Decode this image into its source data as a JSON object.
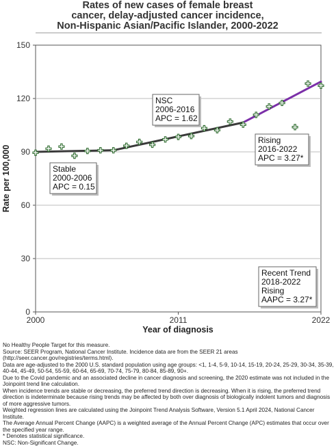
{
  "chart_data": {
    "type": "line",
    "title_lines": [
      "Rates of new cases of female breast",
      "cancer, delay-adjusted cancer incidence,",
      "Non-Hispanic Asian/Pacific Islander,  2000-2022"
    ],
    "xlabel": "Year of diagnosis",
    "ylabel": "Rate per 100,000",
    "xlim": [
      2000,
      2022
    ],
    "ylim": [
      0,
      150
    ],
    "x_ticks": [
      "2000",
      "2011",
      "2022"
    ],
    "y_ticks": [
      "0",
      "30",
      "60",
      "90",
      "120",
      "150"
    ],
    "grid": true,
    "observed": {
      "x": [
        2000,
        2001,
        2002,
        2003,
        2004,
        2005,
        2006,
        2007,
        2008,
        2009,
        2010,
        2011,
        2012,
        2013,
        2014,
        2015,
        2016,
        2017,
        2018,
        2019,
        2020,
        2021,
        2022
      ],
      "y": [
        89.5,
        91.8,
        93.0,
        87.8,
        90.5,
        90.9,
        90.9,
        93.4,
        95.6,
        94.0,
        97.0,
        98.4,
        98.9,
        103.3,
        102.2,
        107.0,
        105.3,
        110.8,
        115.5,
        117.5,
        103.9,
        128.4,
        127.2
      ],
      "color": "#2e6b2e"
    },
    "segments": [
      {
        "x": [
          2000,
          2006
        ],
        "y": [
          90.0,
          90.9
        ],
        "color": "#3a3a3a"
      },
      {
        "x": [
          2006,
          2016
        ],
        "y": [
          90.9,
          106.5
        ],
        "color": "#3a3a3a"
      },
      {
        "x": [
          2016,
          2022
        ],
        "y": [
          106.5,
          129.5
        ],
        "color": "#7b2fa8"
      }
    ],
    "annotations": [
      {
        "lines": [
          "Stable",
          "2000-2006",
          "APC =  0.15"
        ]
      },
      {
        "lines": [
          "NSC",
          "2006-2016",
          "APC =  1.62"
        ]
      },
      {
        "lines": [
          "Rising",
          "2016-2022",
          "APC =  3.27*"
        ]
      },
      {
        "lines": [
          "Recent Trend",
          "2018-2022",
          "Rising",
          "AAPC =  3.27*"
        ]
      }
    ]
  },
  "footnotes": [
    "No Healthy People Target for this measure.",
    "Source: SEER Program, National Cancer Institute. Incidence data are from the SEER 21 areas (http://seer.cancer.gov/registries/terms.html).",
    "Data are age-adjusted to the 2000 U.S. standard population using age groups: <1, 1-4, 5-9, 10-14, 15-19, 20-24, 25-29, 30-34, 35-39, 40-44, 45-49, 50-54, 55-59, 60-64, 65-69, 70-74, 75-79, 80-84, 85-89, 90+.",
    "Due to the Covid pandemic and an associated decline in cancer diagnosis and screening, the 2020 estimate was not included in the Joinpoint trend line calculation.",
    "When incidence trends are stable or decreasing, the preferred trend direction is decreasing. When it is rising, the preferred trend direction is indeterminate because rising trends may be affected by both over diagnosis of biologically indolent tumors and diagnosis of more aggressive tumors.",
    "Weighted regression lines are calculated using the Joinpoint Trend Analysis Software, Version 5.1 April 2024, National Cancer Institute.",
    "The Average Annual Percent Change (AAPC) is a weighted average of the Annual Percent Change (APC) estimates that occur over the specified year range.",
    "* Denotes statistical significance.",
    "NSC: Non-Significant Change."
  ]
}
